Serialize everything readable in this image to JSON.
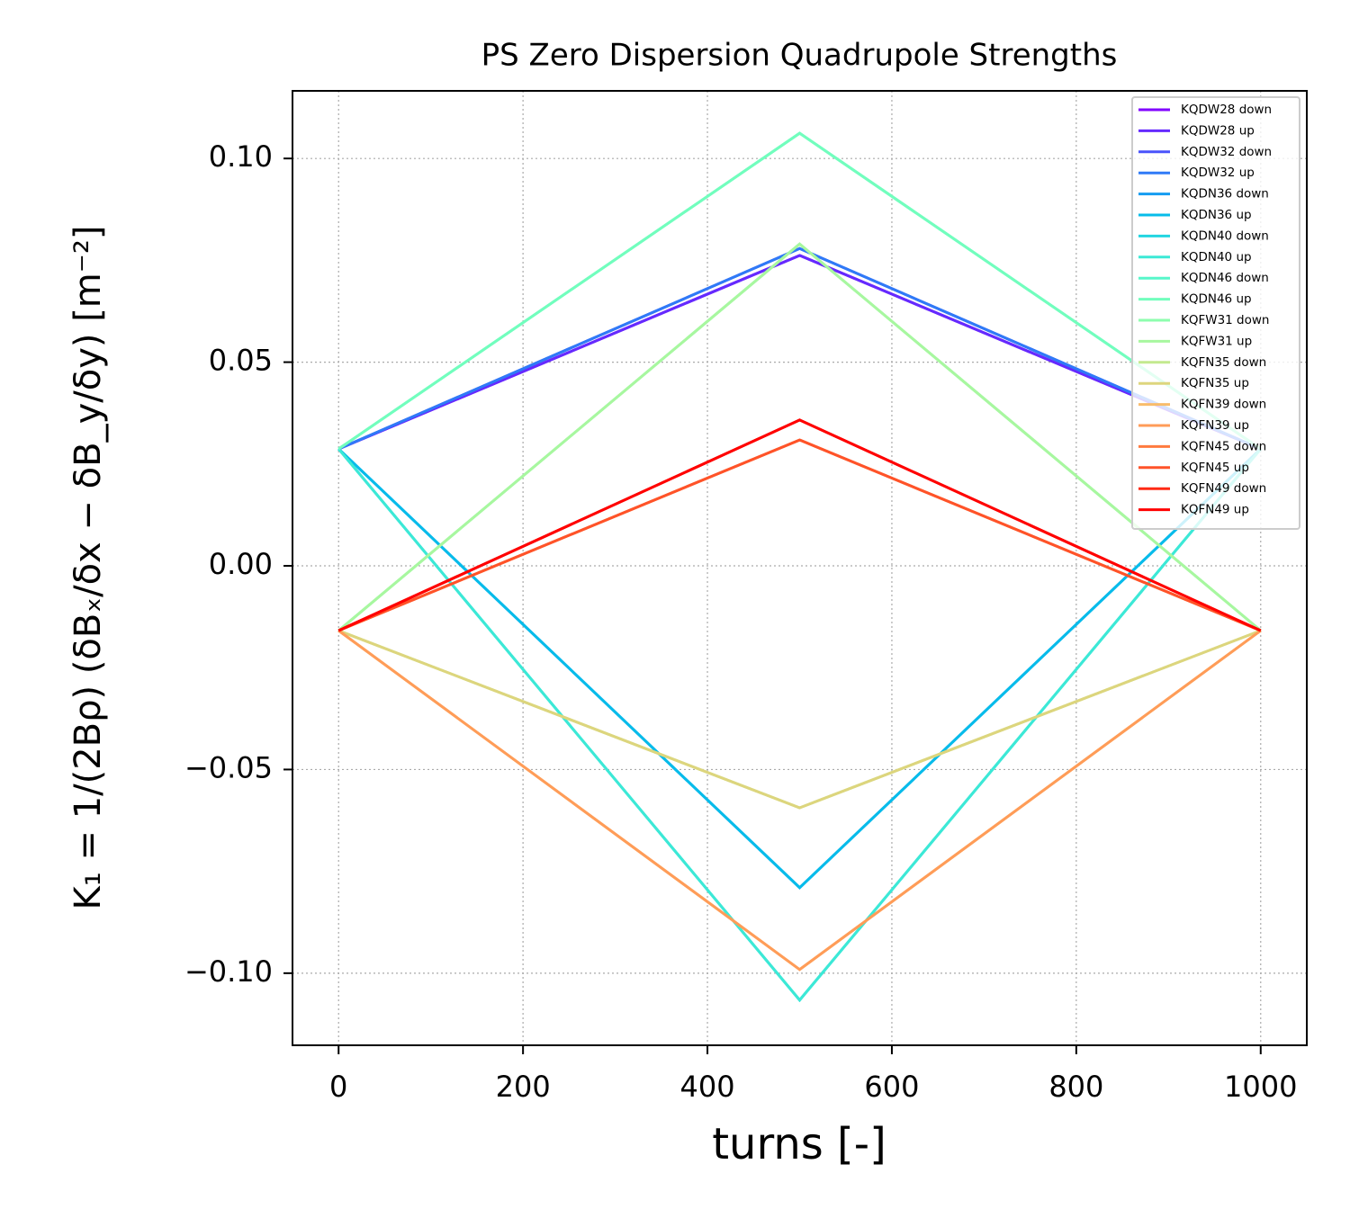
{
  "chart_data": {
    "type": "line",
    "title": "PS Zero Dispersion Quadrupole Strengths",
    "xlabel": "turns [-]",
    "ylabel": "K₁ = 1/(2Bρ) (δBₓ/δx − δB_y/δy) [m⁻²]",
    "x": [
      0,
      500,
      1000
    ],
    "series": [
      {
        "name": "KQDW28 down",
        "color": "#8000ff",
        "values": [
          0.0287,
          0.0762,
          0.0287
        ]
      },
      {
        "name": "KQDW28 up",
        "color": "#652afe",
        "values": [
          0.0287,
          0.0762,
          0.0287
        ]
      },
      {
        "name": "KQDW32 down",
        "color": "#4a53fb",
        "values": [
          0.0287,
          0.0779,
          0.0287
        ]
      },
      {
        "name": "KQDW32 up",
        "color": "#2f7af7",
        "values": [
          0.0287,
          0.0779,
          0.0287
        ]
      },
      {
        "name": "KQDN36 down",
        "color": "#149cf1",
        "values": [
          0.0287,
          -0.079,
          0.0287
        ]
      },
      {
        "name": "KQDN36 up",
        "color": "#07bcea",
        "values": [
          0.0287,
          -0.079,
          0.0287
        ]
      },
      {
        "name": "KQDN40 down",
        "color": "#22d5e1",
        "values": [
          0.0287,
          -0.1066,
          0.0287
        ]
      },
      {
        "name": "KQDN40 up",
        "color": "#3ce9d6",
        "values": [
          0.0287,
          -0.1066,
          0.0287
        ]
      },
      {
        "name": "KQDN46 down",
        "color": "#57f7ca",
        "values": [
          0.0287,
          0.1062,
          0.0287
        ]
      },
      {
        "name": "KQDN46 up",
        "color": "#72febd",
        "values": [
          0.0287,
          0.1062,
          0.0287
        ]
      },
      {
        "name": "KQFW31 down",
        "color": "#8dfeae",
        "values": [
          -0.0159,
          0.079,
          -0.0159
        ]
      },
      {
        "name": "KQFW31 up",
        "color": "#a8f79f",
        "values": [
          -0.0159,
          0.079,
          -0.0159
        ]
      },
      {
        "name": "KQFN35 down",
        "color": "#c3e98e",
        "values": [
          -0.0159,
          -0.0594,
          -0.0159
        ]
      },
      {
        "name": "KQFN35 up",
        "color": "#ddd57d",
        "values": [
          -0.0159,
          -0.0594,
          -0.0159
        ]
      },
      {
        "name": "KQFN39 down",
        "color": "#f8bc6b",
        "values": [
          -0.0159,
          -0.0991,
          -0.0159
        ]
      },
      {
        "name": "KQFN39 up",
        "color": "#ff9c58",
        "values": [
          -0.0159,
          -0.0991,
          -0.0159
        ]
      },
      {
        "name": "KQFN45 down",
        "color": "#ff7a3e",
        "values": [
          -0.0159,
          0.0309,
          -0.0159
        ]
      },
      {
        "name": "KQFN45 up",
        "color": "#ff5329",
        "values": [
          -0.0159,
          0.0309,
          -0.0159
        ]
      },
      {
        "name": "KQFN49 down",
        "color": "#ff2a15",
        "values": [
          -0.0159,
          0.0358,
          -0.0159
        ]
      },
      {
        "name": "KQFN49 up",
        "color": "#ff0000",
        "values": [
          -0.0159,
          0.0358,
          -0.0159
        ]
      }
    ],
    "xlim": [
      -50,
      1050
    ],
    "ylim": [
      -0.1177,
      0.1166
    ],
    "xticks": [
      0,
      200,
      400,
      600,
      800,
      1000
    ],
    "yticks": [
      {
        "value": 0.1,
        "label": "0.10"
      },
      {
        "value": 0.05,
        "label": "0.05"
      },
      {
        "value": 0,
        "label": "0.00"
      },
      {
        "value": -0.05,
        "label": "−0.05"
      },
      {
        "value": -0.1,
        "label": "−0.10"
      }
    ],
    "grid": true,
    "legend": "upper right"
  }
}
